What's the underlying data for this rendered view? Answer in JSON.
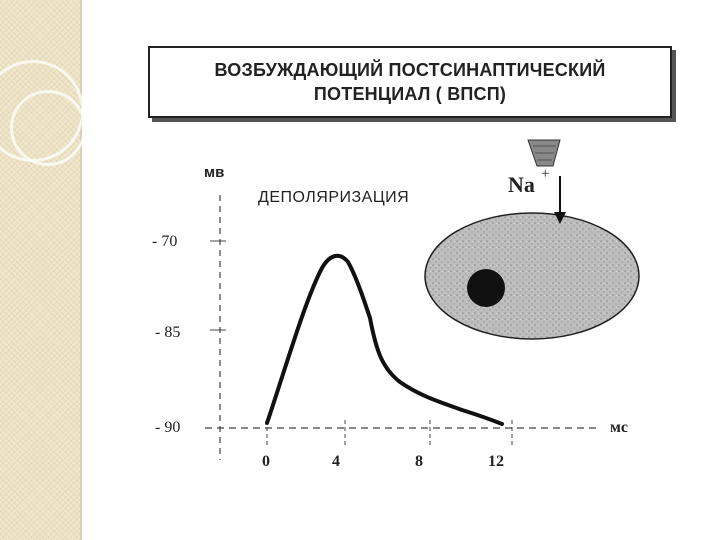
{
  "title": {
    "line1": "ВОЗБУЖДАЮЩИЙ ПОСТСИНАПТИЧЕСКИЙ",
    "line2": "ПОТЕНЦИАЛ ( ВПСП)"
  },
  "diagram": {
    "y_unit": "мв",
    "x_unit": "мс",
    "phase_label": "ДЕПОЛЯРИЗАЦИЯ",
    "ion_label": "Na",
    "ion_charge": "+",
    "y_ticks": [
      "- 70",
      "- 85",
      "- 90"
    ],
    "x_ticks": [
      "0",
      "4",
      "8",
      "12"
    ]
  },
  "colors": {
    "ink": "#222222",
    "cell_fill": "#bdbdbd",
    "nucleus": "#111111",
    "side_panel": "#efe6cc"
  }
}
